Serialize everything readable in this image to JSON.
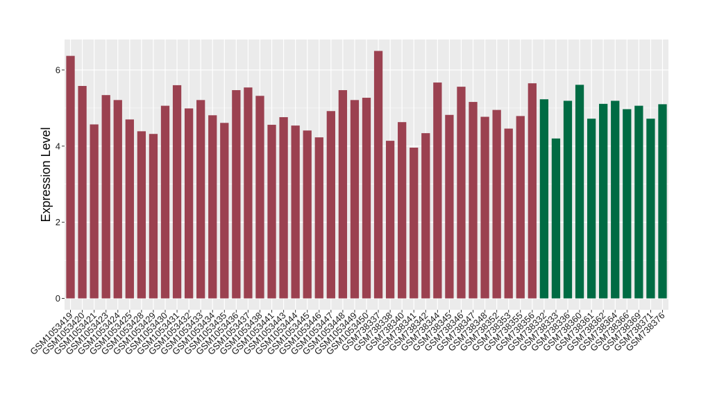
{
  "chart_data": {
    "type": "bar",
    "ylabel": "Expression Level",
    "xlabel": "",
    "ylim": [
      -0.3,
      6.8
    ],
    "y_ticks": [
      0,
      2,
      4,
      6
    ],
    "grid": true,
    "background": "#EBEBEB",
    "gridline_color": "#FFFFFF",
    "colors": {
      "group1": "#9B4150",
      "group2": "#006B43"
    },
    "categories": [
      "GSM1053419",
      "GSM1053420",
      "GSM1053421",
      "GSM1053423",
      "GSM1053424",
      "GSM1053425",
      "GSM1053428",
      "GSM1053429",
      "GSM1053430",
      "GSM1053431",
      "GSM1053432",
      "GSM1053433",
      "GSM1053434",
      "GSM1053435",
      "GSM1053436",
      "GSM1053437",
      "GSM1053438",
      "GSM1053441",
      "GSM1053443",
      "GSM1053444",
      "GSM1053445",
      "GSM1053446",
      "GSM1053447",
      "GSM1053448",
      "GSM1053449",
      "GSM1053450",
      "GSM738337",
      "GSM738338",
      "GSM738340",
      "GSM738341",
      "GSM738342",
      "GSM738344",
      "GSM738345",
      "GSM738346",
      "GSM738347",
      "GSM738348",
      "GSM738352",
      "GSM738353",
      "GSM738355",
      "GSM738356",
      "GSM738332",
      "GSM738333",
      "GSM738336",
      "GSM738360",
      "GSM738361",
      "GSM738362",
      "GSM738364",
      "GSM738366",
      "GSM738369",
      "GSM738371",
      "GSM738376"
    ],
    "values": [
      6.37,
      5.58,
      4.57,
      5.34,
      5.21,
      4.7,
      4.39,
      4.32,
      5.06,
      5.6,
      4.99,
      5.21,
      4.81,
      4.61,
      5.47,
      5.54,
      5.32,
      4.56,
      4.76,
      4.54,
      4.41,
      4.23,
      4.92,
      5.47,
      5.21,
      5.27,
      6.5,
      4.14,
      4.63,
      3.96,
      4.34,
      5.67,
      4.82,
      5.56,
      5.16,
      4.77,
      4.95,
      4.46,
      4.79,
      5.65,
      5.23,
      4.2,
      5.19,
      5.61,
      4.72,
      5.11,
      5.19,
      4.97,
      5.06,
      4.72,
      5.1
    ],
    "groups": [
      "group1",
      "group1",
      "group1",
      "group1",
      "group1",
      "group1",
      "group1",
      "group1",
      "group1",
      "group1",
      "group1",
      "group1",
      "group1",
      "group1",
      "group1",
      "group1",
      "group1",
      "group1",
      "group1",
      "group1",
      "group1",
      "group1",
      "group1",
      "group1",
      "group1",
      "group1",
      "group1",
      "group1",
      "group1",
      "group1",
      "group1",
      "group1",
      "group1",
      "group1",
      "group1",
      "group1",
      "group1",
      "group1",
      "group1",
      "group1",
      "group2",
      "group2",
      "group2",
      "group2",
      "group2",
      "group2",
      "group2",
      "group2",
      "group2",
      "group2",
      "group2"
    ]
  }
}
